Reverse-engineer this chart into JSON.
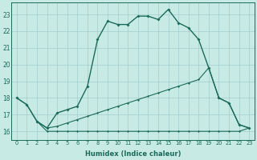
{
  "xlabel": "Humidex (Indice chaleur)",
  "x_ticks": [
    0,
    1,
    2,
    3,
    4,
    5,
    6,
    7,
    8,
    9,
    10,
    11,
    12,
    13,
    14,
    15,
    16,
    17,
    18,
    19,
    20,
    21,
    22,
    23
  ],
  "ylim": [
    15.5,
    23.7
  ],
  "xlim": [
    -0.5,
    23.5
  ],
  "yticks": [
    16,
    17,
    18,
    19,
    20,
    21,
    22,
    23
  ],
  "background_color": "#c8eae4",
  "grid_color": "#a0cccc",
  "line_color": "#1a6b5a",
  "line1_x": [
    0,
    1,
    2,
    3,
    4,
    5,
    6,
    7,
    8,
    9,
    10,
    11,
    12,
    13,
    14,
    15,
    16,
    17,
    18,
    19,
    20,
    21,
    22,
    23
  ],
  "line1_y": [
    18.0,
    17.6,
    16.6,
    16.2,
    17.1,
    17.3,
    17.5,
    18.7,
    21.5,
    22.6,
    22.4,
    22.4,
    22.9,
    22.9,
    22.7,
    23.3,
    22.5,
    22.2,
    21.5,
    19.8,
    18.0,
    17.7,
    16.4,
    16.2
  ],
  "line2_x": [
    0,
    1,
    2,
    3,
    4,
    5,
    6,
    7,
    8,
    9,
    10,
    11,
    12,
    13,
    14,
    15,
    16,
    17,
    18,
    19,
    20,
    21,
    22,
    23
  ],
  "line2_y": [
    18.0,
    17.6,
    16.6,
    16.2,
    16.3,
    16.5,
    16.7,
    16.9,
    17.1,
    17.3,
    17.5,
    17.7,
    17.9,
    18.1,
    18.3,
    18.5,
    18.7,
    18.9,
    19.1,
    19.8,
    18.0,
    17.7,
    16.4,
    16.2
  ],
  "line3_x": [
    2,
    3,
    4,
    5,
    6,
    7,
    8,
    9,
    10,
    11,
    12,
    13,
    14,
    15,
    16,
    17,
    18,
    19,
    20,
    21,
    22,
    23
  ],
  "line3_y": [
    16.6,
    16.0,
    16.0,
    16.0,
    16.0,
    16.0,
    16.0,
    16.0,
    16.0,
    16.0,
    16.0,
    16.0,
    16.0,
    16.0,
    16.0,
    16.0,
    16.0,
    16.0,
    16.0,
    16.0,
    16.0,
    16.2
  ]
}
